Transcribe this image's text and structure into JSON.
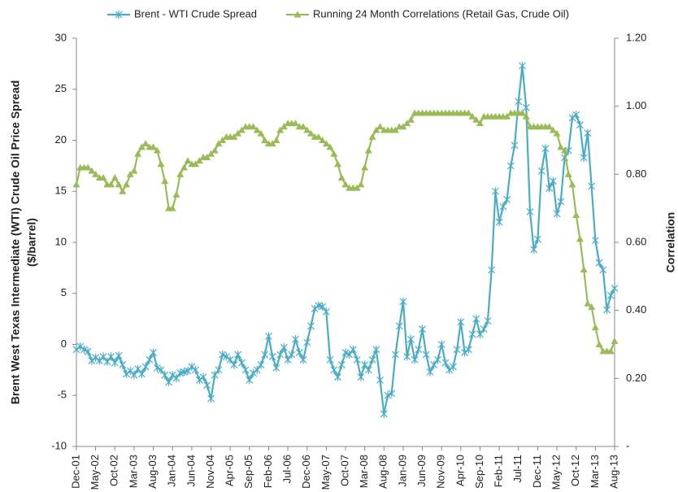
{
  "chart_data": {
    "type": "line",
    "ylabel": [
      "Brent  West Texas Intermediate (WTI) Crude Oil Price Spread",
      "($/barrel)"
    ],
    "y2label": "Correlation",
    "categories": [
      "Dec-01",
      null,
      null,
      null,
      null,
      "May-02",
      null,
      null,
      null,
      null,
      "Oct-02",
      null,
      null,
      null,
      null,
      "Mar-03",
      null,
      null,
      null,
      null,
      "Aug-03",
      null,
      null,
      null,
      null,
      "Jan-04",
      null,
      null,
      null,
      null,
      "Jun-04",
      null,
      null,
      null,
      null,
      "Nov-04",
      null,
      null,
      null,
      null,
      "Apr-05",
      null,
      null,
      null,
      null,
      "Sep-05",
      null,
      null,
      null,
      null,
      "Feb-06",
      null,
      null,
      null,
      null,
      "Jul-06",
      null,
      null,
      null,
      null,
      "Dec-06",
      null,
      null,
      null,
      null,
      "May-07",
      null,
      null,
      null,
      null,
      "Oct-07",
      null,
      null,
      null,
      null,
      "Mar-08",
      null,
      null,
      null,
      null,
      "Aug-08",
      null,
      null,
      null,
      null,
      "Jan-09",
      null,
      null,
      null,
      null,
      "Jun-09",
      null,
      null,
      null,
      null,
      "Nov-09",
      null,
      null,
      null,
      null,
      "Apr-10",
      null,
      null,
      null,
      null,
      "Sep-10",
      null,
      null,
      null,
      null,
      "Feb-11",
      null,
      null,
      null,
      null,
      "Jul-11",
      null,
      null,
      null,
      null,
      "Dec-11",
      null,
      null,
      null,
      null,
      "May-12",
      null,
      null,
      null,
      null,
      "Oct-12",
      null,
      null,
      null,
      null,
      "Mar-13",
      null,
      null,
      null,
      null,
      "Aug-13"
    ],
    "series": [
      {
        "name": "Brent - WTI Crude Spread",
        "color": "#4bacc6",
        "marker": "asterisk",
        "values": [
          -0.5,
          -0.2,
          -0.5,
          -0.7,
          -1.6,
          -1.3,
          -1.6,
          -1.2,
          -1.7,
          -1.2,
          -1.8,
          -1.1,
          -2.0,
          -2.9,
          -2.6,
          -3.0,
          -2.4,
          -2.9,
          -2.2,
          -1.5,
          -0.8,
          -2.3,
          -2.5,
          -3.0,
          -3.7,
          -3.0,
          -3.3,
          -2.8,
          -2.7,
          -2.6,
          -2.2,
          -2.5,
          -3.5,
          -3.2,
          -4.0,
          -5.3,
          -3.0,
          -2.5,
          -1.0,
          -1.2,
          -1.5,
          -2.0,
          -1.0,
          -1.8,
          -2.5,
          -3.5,
          -2.8,
          -2.5,
          -2.0,
          -1.0,
          0.8,
          -1.2,
          -2.3,
          -1.0,
          -0.3,
          -1.5,
          -1.0,
          0.5,
          -0.8,
          -1.5,
          0.2,
          1.8,
          3.5,
          3.8,
          3.7,
          3.2,
          -1.5,
          -2.5,
          -3.2,
          -2.0,
          -0.8,
          -1.0,
          -0.5,
          -1.5,
          -3.2,
          -2.0,
          -2.5,
          -1.5,
          -0.5,
          -3.5,
          -6.8,
          -5.0,
          -4.8,
          -1.0,
          1.8,
          4.2,
          -1.2,
          0.5,
          -1.5,
          -0.5,
          1.5,
          -1.0,
          -2.7,
          -2.0,
          -1.5,
          0.0,
          -1.8,
          -2.5,
          -2.2,
          -0.5,
          2.2,
          -0.8,
          -0.5,
          1.0,
          2.5,
          1.0,
          1.5,
          2.3,
          7.3,
          15.0,
          12.0,
          13.5,
          14.2,
          17.5,
          19.5,
          23.8,
          27.3,
          23.2,
          13.0,
          9.3,
          10.3,
          17.0,
          19.2,
          15.3,
          16.0,
          12.8,
          14.0,
          18.3,
          19.0,
          22.2,
          22.5,
          21.5,
          18.3,
          20.7,
          15.5,
          10.2,
          8.0,
          7.3,
          3.4,
          4.8,
          5.5
        ]
      },
      {
        "name": "Running 24 Month Correlations (Retail Gas, Crude Oil)",
        "color": "#9bbb59",
        "marker": "triangle",
        "axis": "y2",
        "values": [
          0.77,
          0.82,
          0.82,
          0.82,
          0.81,
          0.8,
          0.79,
          0.79,
          0.77,
          0.77,
          0.79,
          0.77,
          0.75,
          0.77,
          0.8,
          0.81,
          0.86,
          0.88,
          0.89,
          0.88,
          0.88,
          0.87,
          0.83,
          0.78,
          0.7,
          0.7,
          0.74,
          0.8,
          0.82,
          0.84,
          0.83,
          0.83,
          0.84,
          0.85,
          0.85,
          0.86,
          0.87,
          0.89,
          0.9,
          0.91,
          0.91,
          0.91,
          0.92,
          0.93,
          0.94,
          0.94,
          0.94,
          0.93,
          0.92,
          0.9,
          0.89,
          0.89,
          0.9,
          0.93,
          0.94,
          0.95,
          0.95,
          0.95,
          0.94,
          0.94,
          0.93,
          0.92,
          0.91,
          0.91,
          0.9,
          0.89,
          0.88,
          0.86,
          0.83,
          0.79,
          0.77,
          0.76,
          0.76,
          0.76,
          0.77,
          0.82,
          0.87,
          0.91,
          0.93,
          0.94,
          0.93,
          0.93,
          0.93,
          0.93,
          0.94,
          0.94,
          0.95,
          0.96,
          0.98,
          0.98,
          0.98,
          0.98,
          0.98,
          0.98,
          0.98,
          0.98,
          0.98,
          0.98,
          0.98,
          0.98,
          0.98,
          0.98,
          0.98,
          0.97,
          0.96,
          0.95,
          0.97,
          0.97,
          0.97,
          0.97,
          0.97,
          0.97,
          0.97,
          0.98,
          0.98,
          0.98,
          0.98,
          0.97,
          0.94,
          0.94,
          0.94,
          0.94,
          0.94,
          0.94,
          0.93,
          0.92,
          0.88,
          0.87,
          0.8,
          0.77,
          0.68,
          0.61,
          0.52,
          0.42,
          0.41,
          0.35,
          0.3,
          0.28,
          0.28,
          0.28,
          0.31
        ]
      }
    ],
    "ylim": [
      -10,
      30
    ],
    "yticks": [
      -10,
      -5,
      0,
      5,
      10,
      15,
      20,
      25,
      30
    ],
    "y2lim": [
      0,
      1.2
    ],
    "y2ticks": [
      {
        "value": 0,
        "label": "-"
      },
      {
        "value": 0.2,
        "label": "0.20"
      },
      {
        "value": 0.4,
        "label": "0.40"
      },
      {
        "value": 0.6,
        "label": "0.60"
      },
      {
        "value": 0.8,
        "label": "0.80"
      },
      {
        "value": 1.0,
        "label": "1.00"
      },
      {
        "value": 1.2,
        "label": "1.20"
      }
    ],
    "grid": false,
    "legend": "top"
  }
}
